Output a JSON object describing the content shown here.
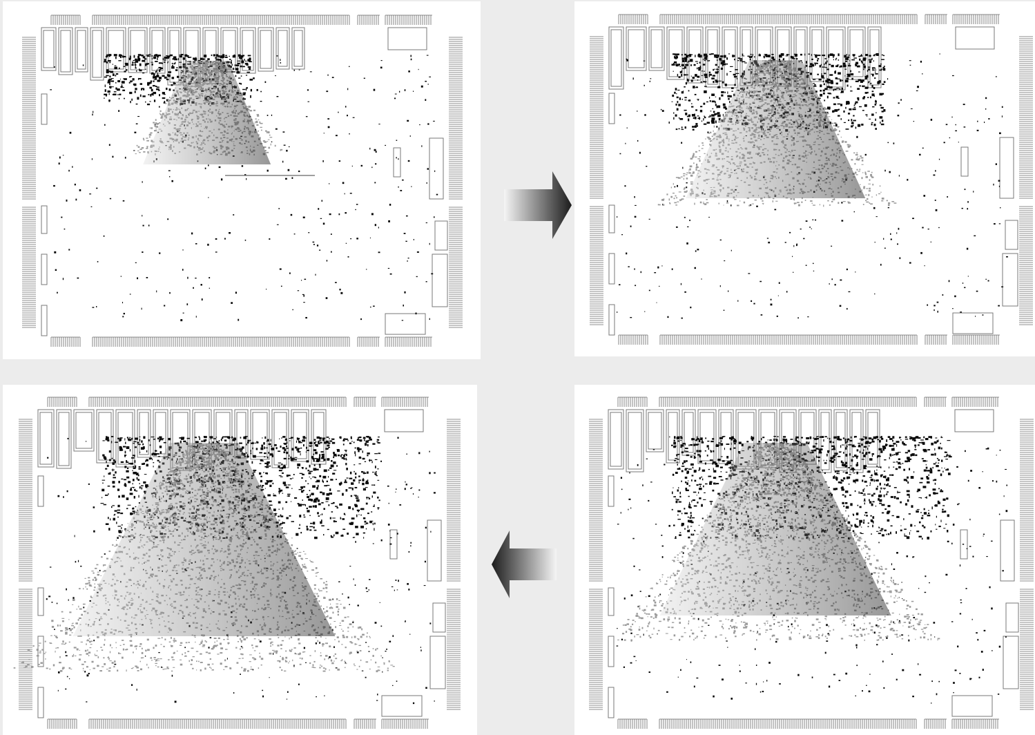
{
  "figure": {
    "panels": [
      {
        "id": "step-1",
        "gray_extent": "small",
        "dark_extent": "small",
        "shape": "narrow-cone"
      },
      {
        "id": "step-2",
        "gray_extent": "medium",
        "dark_extent": "medium",
        "shape": "wide-fan"
      },
      {
        "id": "step-3",
        "gray_extent": "large",
        "dark_extent": "large",
        "shape": "broad-field"
      },
      {
        "id": "step-4",
        "gray_extent": "very-large",
        "dark_extent": "large",
        "shape": "full-field"
      }
    ],
    "flow": [
      "step-1",
      "step-2",
      "step-3",
      "step-4"
    ],
    "arrows": [
      {
        "id": "arrow-right",
        "direction": "right",
        "from": "step-1",
        "to": "step-2"
      },
      {
        "id": "arrow-left",
        "direction": "left",
        "from": "step-3",
        "to": "step-4"
      }
    ],
    "colors": {
      "background": "#ececec",
      "tile": "#ffffff",
      "outline": "#222222",
      "pins": "#666666",
      "cells": "#777777",
      "hot": "#0a0a0a",
      "spread": "#9a9a9a"
    }
  }
}
